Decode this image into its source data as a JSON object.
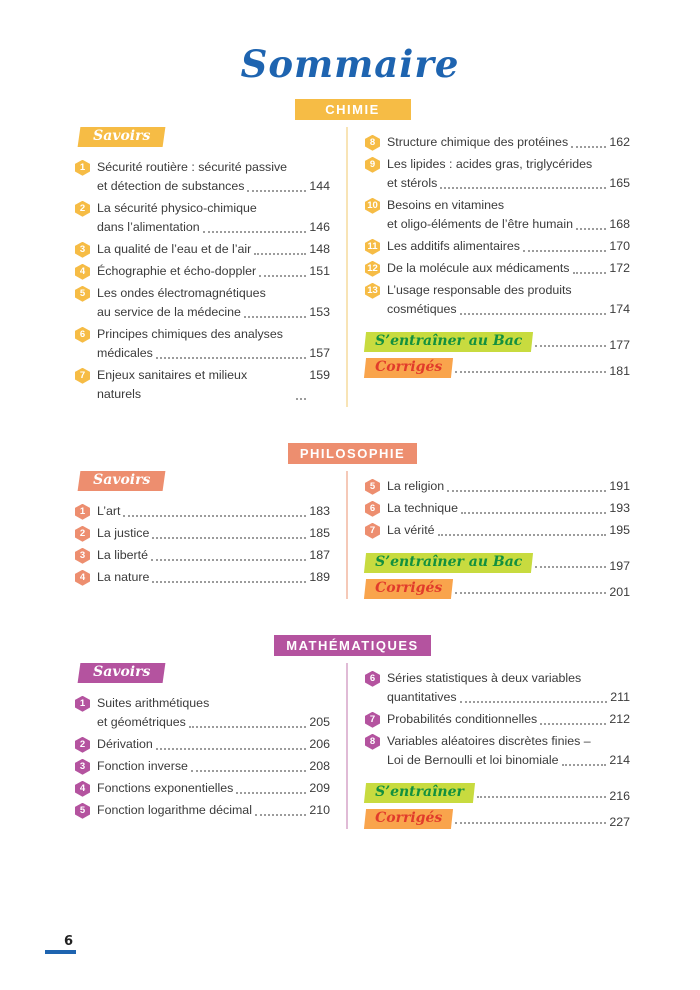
{
  "page": {
    "title": "Sommaire",
    "page_number": "6"
  },
  "colors": {
    "title_blue": "#1e64b0",
    "text": "#3b3b3b",
    "leader_dots": "#9c9c9c",
    "bac_badge_bg": "#c8db3f",
    "bac_badge_text": "#13903f",
    "corriges_badge_bg": "#f9a44c",
    "corriges_badge_text": "#e13b2b"
  },
  "sections": [
    {
      "name": "CHIMIE",
      "theme": "#f6bc45",
      "theme_light": "#f8e4b6",
      "savoirs_label": "Savoirs",
      "left_items": [
        {
          "num": "1",
          "lines": [
            "Sécurité routière : sécurité passive",
            "et détection de substances"
          ],
          "page": "144"
        },
        {
          "num": "2",
          "lines": [
            "La sécurité physico-chimique",
            "dans l’alimentation"
          ],
          "page": "146"
        },
        {
          "num": "3",
          "lines": [
            "La qualité de l’eau et de l’air"
          ],
          "page": "148"
        },
        {
          "num": "4",
          "lines": [
            "Échographie et écho-doppler"
          ],
          "page": "151"
        },
        {
          "num": "5",
          "lines": [
            "Les ondes électromagnétiques",
            "au service de la médecine"
          ],
          "page": "153"
        },
        {
          "num": "6",
          "lines": [
            "Principes chimiques des analyses",
            "médicales"
          ],
          "page": "157"
        },
        {
          "num": "7",
          "lines": [
            "Enjeux sanitaires et milieux naturels"
          ],
          "page": "159"
        }
      ],
      "right_items": [
        {
          "num": "8",
          "lines": [
            "Structure chimique des protéines"
          ],
          "page": "162"
        },
        {
          "num": "9",
          "lines": [
            "Les lipides : acides gras, triglycérides",
            "et stérols"
          ],
          "page": "165"
        },
        {
          "num": "10",
          "lines": [
            "Besoins en vitamines",
            "et oligo-éléments de l’être humain"
          ],
          "page": "168"
        },
        {
          "num": "11",
          "lines": [
            "Les additifs alimentaires"
          ],
          "page": "170"
        },
        {
          "num": "12",
          "lines": [
            "De la molécule aux médicaments"
          ],
          "page": "172"
        },
        {
          "num": "13",
          "lines": [
            "L’usage responsable des produits",
            "cosmétiques"
          ],
          "page": "174"
        }
      ],
      "bac": {
        "label": "S’entraîner au Bac",
        "page": "177"
      },
      "corriges": {
        "label": "Corrigés",
        "page": "181"
      }
    },
    {
      "name": "PHILOSOPHIE",
      "theme": "#ed8e6f",
      "theme_light": "#f5c9b8",
      "savoirs_label": "Savoirs",
      "left_items": [
        {
          "num": "1",
          "lines": [
            "L’art"
          ],
          "page": "183"
        },
        {
          "num": "2",
          "lines": [
            "La justice"
          ],
          "page": "185"
        },
        {
          "num": "3",
          "lines": [
            "La liberté"
          ],
          "page": "187"
        },
        {
          "num": "4",
          "lines": [
            "La nature"
          ],
          "page": "189"
        }
      ],
      "right_items": [
        {
          "num": "5",
          "lines": [
            "La religion"
          ],
          "page": "191"
        },
        {
          "num": "6",
          "lines": [
            "La technique"
          ],
          "page": "193"
        },
        {
          "num": "7",
          "lines": [
            "La vérité"
          ],
          "page": "195"
        }
      ],
      "bac": {
        "label": "S’entraîner au Bac",
        "page": "197"
      },
      "corriges": {
        "label": "Corrigés",
        "page": "201"
      }
    },
    {
      "name": "MATHÉMATIQUES",
      "theme": "#b4539f",
      "theme_light": "#e0bbd6",
      "savoirs_label": "Savoirs",
      "left_items": [
        {
          "num": "1",
          "lines": [
            "Suites arithmétiques",
            "et géométriques"
          ],
          "page": "205"
        },
        {
          "num": "2",
          "lines": [
            "Dérivation"
          ],
          "page": "206"
        },
        {
          "num": "3",
          "lines": [
            "Fonction inverse"
          ],
          "page": "208"
        },
        {
          "num": "4",
          "lines": [
            "Fonctions exponentielles"
          ],
          "page": "209"
        },
        {
          "num": "5",
          "lines": [
            "Fonction logarithme décimal"
          ],
          "page": "210"
        }
      ],
      "right_items": [
        {
          "num": "6",
          "lines": [
            "Séries statistiques à deux variables",
            "quantitatives"
          ],
          "page": "211"
        },
        {
          "num": "7",
          "lines": [
            "Probabilités conditionnelles"
          ],
          "page": "212"
        },
        {
          "num": "8",
          "lines": [
            "Variables aléatoires discrètes finies –",
            "Loi de Bernoulli et loi binomiale"
          ],
          "page": "214"
        }
      ],
      "bac": {
        "label": "S’entraîner",
        "page": "216"
      },
      "corriges": {
        "label": "Corrigés",
        "page": "227"
      }
    }
  ]
}
